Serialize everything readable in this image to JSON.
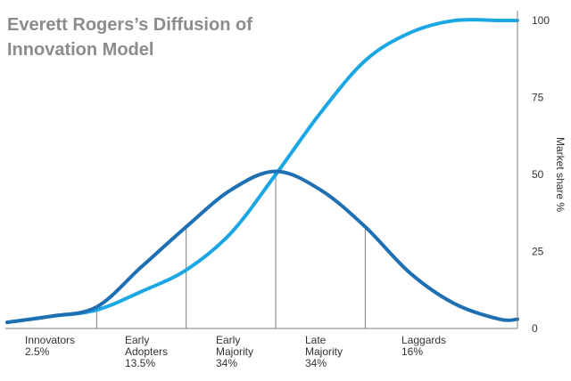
{
  "chart_data": {
    "type": "line",
    "title_lines": [
      "Everett Rogers’s Diffusion of",
      "Innovation Model"
    ],
    "ylabel": "Market share %",
    "ylim": [
      0,
      100
    ],
    "yticks": [
      0,
      25,
      50,
      75,
      100
    ],
    "grid": false,
    "segments": [
      {
        "lines": [
          "Innovators",
          "2.5%"
        ]
      },
      {
        "lines": [
          "Early",
          "Adopters",
          "13.5%"
        ]
      },
      {
        "lines": [
          "Early",
          "Majority",
          "34%"
        ]
      },
      {
        "lines": [
          "Late",
          "Majority",
          "34%"
        ]
      },
      {
        "lines": [
          "Laggards",
          "16%"
        ]
      }
    ],
    "segment_boundaries_sd": [
      -2,
      -1,
      0,
      1
    ],
    "x_range_sd": [
      -3,
      2.7
    ],
    "series": [
      {
        "kind": "adoption-curve",
        "color": "#1f6fb3",
        "x": [
          -3.0,
          -2.5,
          -2.0,
          -1.5,
          -1.0,
          -0.5,
          0.0,
          0.5,
          1.0,
          1.5,
          2.0,
          2.5,
          2.7
        ],
        "y": [
          2,
          4,
          7,
          20,
          33,
          45,
          51,
          45,
          33,
          18,
          8,
          3,
          3
        ]
      },
      {
        "kind": "market-share-curve",
        "color": "#1aa7e4",
        "x": [
          -3.0,
          -2.5,
          -2.0,
          -1.5,
          -1.0,
          -0.5,
          0.0,
          0.5,
          1.0,
          1.5,
          2.0,
          2.5,
          2.7
        ],
        "y": [
          2,
          4,
          6,
          12,
          19,
          31,
          50,
          70,
          87,
          96,
          100,
          100,
          100
        ]
      }
    ]
  }
}
